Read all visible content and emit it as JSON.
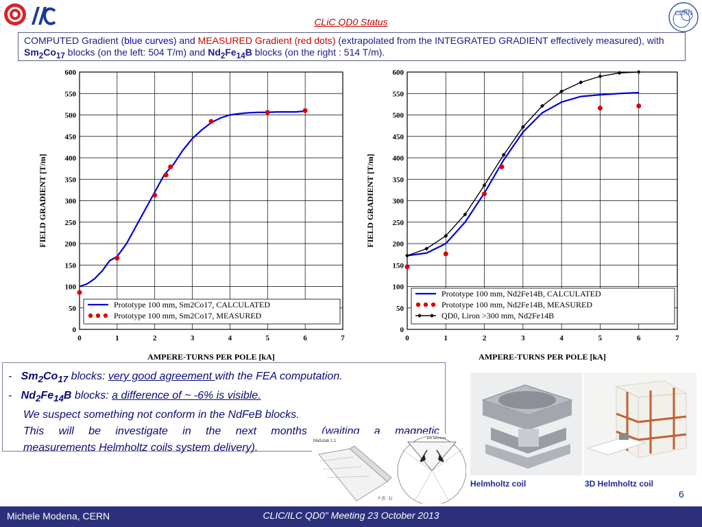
{
  "slide": {
    "title": "CLiC QD0 Status",
    "description": {
      "p1": "COMPUTED Gradient (",
      "p2": "blue curves",
      "p3": ") and ",
      "p4": "MEASURED Gradient (red dots)",
      "p5": " (extrapolated from the INTEGRATED GRADIENT effectively measured), with ",
      "p6": "Sm",
      "p7": "2",
      "p8": "Co",
      "p9": "17",
      "p10": " blocks (on the left: 504 T/m) and ",
      "p11": "Nd",
      "p12": "2",
      "p13": "Fe",
      "p14": "14",
      "p15": "B",
      "p16": " blocks (on the right : 514 T/m)."
    },
    "notes": {
      "dash": "-",
      "l1_mat1": "Sm",
      "l1_sub1": "2",
      "l1_mat2": "Co",
      "l1_sub2": "17",
      "l1_a": " blocks: ",
      "l1_u": "very good agreement ",
      "l1_b": "with the FEA computation.",
      "l2_mat1": "Nd",
      "l2_sub1": "2",
      "l2_mat2": "Fe",
      "l2_sub2": "14",
      "l2_mat3": "B",
      "l2_a": " blocks: ",
      "l2_u": "a difference of ~ -6% is visible.",
      "l3": "We suspect something not conform in the NdFeB blocks.",
      "l4": "This will be investigate in the next months (waiting a magnetic",
      "l5": "measurements Helmholtz coils system delivery)."
    },
    "captions": {
      "photo1": "Helmholtz coil",
      "photo2": "3D Helmholtz coil"
    },
    "sketch_labels": {
      "left": "Maßstab 1:1",
      "right": "Y (5 : 1)",
      "top": "Ein Element"
    },
    "page_number": "6",
    "footer": {
      "author": "Michele Modena, CERN",
      "meeting": "CLIC/ILC QD0\" Meeting 23 October 2013"
    },
    "logos": {
      "cern": "CERN"
    },
    "colors": {
      "computed": "#0000dd",
      "measured": "#dd0000",
      "qd0": "#000000",
      "footer_bg": "#2c2f7a",
      "title": "#c00000"
    }
  },
  "chart_data": [
    {
      "type": "line",
      "xlabel": "AMPERE-TURNS PER POLE [kA]",
      "ylabel": "FIELD GRADIENT [T/m]",
      "xlim": [
        0,
        7
      ],
      "ylim": [
        0,
        600
      ],
      "xticks": [
        "0",
        "1",
        "2",
        "3",
        "4",
        "5",
        "6",
        "7"
      ],
      "yticks": [
        "0",
        "50",
        "100",
        "150",
        "200",
        "250",
        "300",
        "350",
        "400",
        "450",
        "500",
        "550",
        "600"
      ],
      "grid": true,
      "legend_position": "bottom-right",
      "series": [
        {
          "name": "Prototype 100 mm, Sm2Co17, CALCULATED",
          "style": "line",
          "color": "#0000dd",
          "x": [
            0,
            0.2,
            0.4,
            0.6,
            0.8,
            1.0,
            1.25,
            1.5,
            1.75,
            2.0,
            2.25,
            2.5,
            2.75,
            3.0,
            3.25,
            3.5,
            3.75,
            4.0,
            4.25,
            4.5,
            4.75,
            5.0,
            5.25,
            5.5,
            5.75,
            6.0
          ],
          "y": [
            100,
            106,
            118,
            136,
            160,
            170,
            200,
            240,
            280,
            320,
            360,
            385,
            418,
            445,
            465,
            482,
            493,
            500,
            503,
            505,
            506,
            506,
            507,
            507,
            507,
            509
          ]
        },
        {
          "name": "Prototype 100 mm, Sm2Co17, MEASURED",
          "style": "markers",
          "color": "#dd0000",
          "x": [
            0,
            1.0,
            2.0,
            2.3,
            2.42,
            3.5,
            5.0,
            6.0
          ],
          "y": [
            86,
            166,
            313,
            360,
            379,
            485,
            506,
            510
          ]
        }
      ]
    },
    {
      "type": "line",
      "xlabel": "AMPERE-TURNS PER POLE [kA]",
      "ylabel": "FIELD GRADIENT [T/m]",
      "xlim": [
        0,
        7
      ],
      "ylim": [
        0,
        600
      ],
      "xticks": [
        "0",
        "1",
        "2",
        "3",
        "4",
        "5",
        "6",
        "7"
      ],
      "yticks": [
        "0",
        "50",
        "100",
        "150",
        "200",
        "250",
        "300",
        "350",
        "400",
        "450",
        "500",
        "550",
        "600"
      ],
      "grid": true,
      "legend_position": "bottom-right",
      "series": [
        {
          "name": "Prototype 100 mm, Nd2Fe14B, CALCULATED",
          "style": "line",
          "color": "#0000dd",
          "x": [
            0,
            0.5,
            1.0,
            1.5,
            2.0,
            2.5,
            3.0,
            3.5,
            4.0,
            4.5,
            5.0,
            5.5,
            6.0
          ],
          "y": [
            172,
            178,
            200,
            250,
            318,
            395,
            460,
            505,
            530,
            543,
            547,
            550,
            552
          ]
        },
        {
          "name": "Prototype 100 mm, Nd2Fe14B, MEASURED",
          "style": "markers",
          "color": "#dd0000",
          "x": [
            0,
            1.0,
            2.0,
            2.45,
            5.0,
            6.0
          ],
          "y": [
            146,
            176,
            316,
            379,
            516,
            521
          ]
        },
        {
          "name": "QD0, Liron >300 mm, Nd2Fe14B",
          "style": "line-markers",
          "color": "#000000",
          "x": [
            0,
            0.5,
            1.0,
            1.5,
            2.0,
            2.5,
            3.0,
            3.5,
            4.0,
            4.5,
            5.0,
            5.5,
            6.0
          ],
          "y": [
            172,
            188,
            218,
            268,
            336,
            407,
            472,
            521,
            555,
            576,
            590,
            598,
            600
          ]
        }
      ]
    }
  ]
}
